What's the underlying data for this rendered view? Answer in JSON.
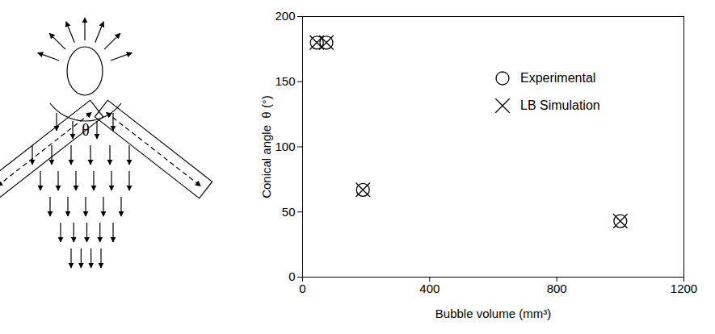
{
  "diagram": {
    "angle_label": "θ"
  },
  "chart_data": {
    "type": "scatter",
    "xlabel": "Bubble volume (mm³)",
    "ylabel": "Conical angle  θ (°)",
    "xlim": [
      0,
      1200
    ],
    "xticks": [
      0,
      400,
      800,
      1200
    ],
    "ylim": [
      0,
      200
    ],
    "yticks": [
      0,
      50,
      100,
      150,
      200
    ],
    "legend": "upper right",
    "series": [
      {
        "name": "Experimental",
        "color": "#000000",
        "marker": "circle",
        "x": [
          45,
          75,
          190,
          1000
        ],
        "values": [
          180,
          180,
          67,
          43
        ]
      },
      {
        "name": "LB Simulation",
        "color": "#000000",
        "marker": "x",
        "x": [
          45,
          75,
          190,
          1000
        ],
        "values": [
          180,
          180,
          67,
          43
        ]
      }
    ]
  }
}
